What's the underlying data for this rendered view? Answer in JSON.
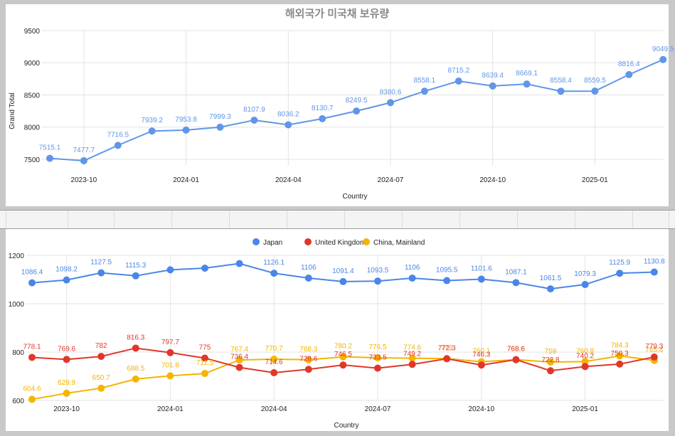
{
  "chart_data": [
    {
      "type": "line",
      "title": "해외국가 미국채 보유량",
      "xlabel": "Country",
      "ylabel": "Grand Total",
      "ylim": [
        7400,
        9500
      ],
      "yticks": [
        7500,
        8000,
        8500,
        9000,
        9500
      ],
      "xticks": [
        "2023-10",
        "2024-01",
        "2024-04",
        "2024-07",
        "2024-10",
        "2025-01"
      ],
      "xtick_index": [
        1,
        4,
        7,
        10,
        13,
        16
      ],
      "color": "#5f96e8",
      "series": [
        {
          "name": "Grand Total",
          "values": [
            7515.1,
            7477.7,
            7716.5,
            7939.2,
            7953.8,
            7999.3,
            8107.9,
            8036.2,
            8130.7,
            8249.5,
            8380.6,
            8558.1,
            8715.2,
            8639.4,
            8669.1,
            8558.4,
            8559.5,
            8816.4,
            9049.5
          ]
        }
      ]
    },
    {
      "type": "line",
      "xlabel": "Country",
      "ylim": [
        600,
        1200
      ],
      "yticks": [
        600,
        800,
        1000,
        1200
      ],
      "xticks": [
        "2023-10",
        "2024-01",
        "2024-04",
        "2024-07",
        "2024-10",
        "2025-01"
      ],
      "xtick_index": [
        1,
        4,
        7,
        10,
        13,
        16
      ],
      "legend": "top",
      "series": [
        {
          "name": "Japan",
          "color": "#4a86e8",
          "values": [
            1086.4,
            1098.2,
            1127.5,
            1115.3,
            1140.0,
            1147.0,
            1166.0,
            1126.1,
            1106,
            1091.4,
            1093.5,
            1106,
            1095.5,
            1101.6,
            1087.1,
            1061.5,
            1079.3,
            1125.9,
            1130.8
          ],
          "labels": [
            "1086.4",
            "1098.2",
            "1127.5",
            "1115.3",
            "",
            "",
            "",
            "1126.1",
            "1106",
            "1091.4",
            "1093.5",
            "1106",
            "1095.5",
            "1101.6",
            "1087.1",
            "1061.5",
            "1079.3",
            "1125.9",
            "1130.8"
          ]
        },
        {
          "name": "United Kingdom",
          "color": "#e0372a",
          "values": [
            778.1,
            769.6,
            782,
            816.3,
            797.7,
            775,
            736.4,
            714.6,
            728.6,
            746.5,
            733.5,
            749.2,
            772.3,
            746.3,
            768.6,
            722.8,
            740.2,
            750.3,
            779.3
          ],
          "labels": [
            "778.1",
            "769.6",
            "782",
            "816.3",
            "797.7",
            "775",
            "736.4",
            "714.6",
            "728.6",
            "746.5",
            "733.5",
            "749.2",
            "772.3",
            "746.3",
            "768.6",
            "722.8",
            "740.2",
            "750.3",
            "779.3"
          ]
        },
        {
          "name": "China, Mainland",
          "color": "#f5b400",
          "values": [
            604.6,
            629.9,
            650.7,
            688.5,
            701.8,
            711.5,
            767.4,
            770.7,
            768.3,
            780.2,
            776.5,
            774.6,
            773,
            760.1,
            768.6,
            759,
            760.8,
            784.3,
            765.4
          ],
          "labels": [
            "604.6",
            "629.9",
            "650.7",
            "688.5",
            "701.8",
            "711.5",
            "767.4",
            "770.7",
            "768.3",
            "780.2",
            "776.5",
            "774.6",
            "773",
            "760.1",
            "768.6",
            "759",
            "760.8",
            "784.3",
            "765.4"
          ]
        }
      ]
    }
  ]
}
